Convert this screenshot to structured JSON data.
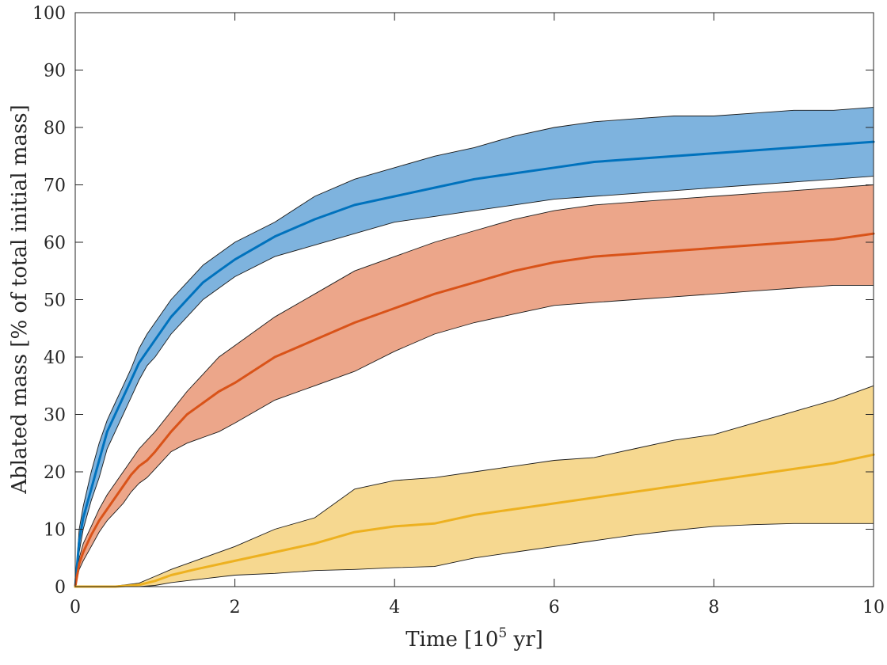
{
  "chart_data": {
    "type": "area",
    "xlabel": "Time [10",
    "xlabel_exponent": "5",
    "xlabel_unit": " yr]",
    "ylabel": "Ablated mass [% of total initial mass]",
    "xlim": [
      0,
      10
    ],
    "ylim": [
      0,
      100
    ],
    "xticks": [
      0,
      2,
      4,
      6,
      8,
      10
    ],
    "yticks": [
      0,
      10,
      20,
      30,
      40,
      50,
      60,
      70,
      80,
      90,
      100
    ],
    "grid": false,
    "legend": false,
    "series": [
      {
        "name": "blue",
        "color": "#0072BD",
        "fill": "#7EB3DE",
        "x": [
          0,
          0.05,
          0.1,
          0.2,
          0.3,
          0.4,
          0.5,
          0.6,
          0.7,
          0.8,
          0.9,
          1.0,
          1.2,
          1.4,
          1.6,
          1.8,
          2.0,
          2.5,
          3.0,
          3.5,
          4.0,
          4.5,
          5.0,
          5.5,
          6.0,
          6.5,
          7.0,
          7.5,
          8.0,
          8.5,
          9.0,
          9.5,
          10.0
        ],
        "mean": [
          0,
          8,
          12,
          17,
          22,
          27,
          30,
          33,
          36,
          39,
          41,
          43,
          47,
          50,
          53,
          55,
          57,
          61,
          64,
          66.5,
          68,
          69.5,
          71,
          72,
          73,
          74,
          74.5,
          75,
          75.5,
          76,
          76.5,
          77,
          77.5
        ],
        "upper": [
          0,
          10,
          14,
          20,
          25,
          29,
          32,
          35,
          38,
          41.5,
          44,
          46,
          50,
          53,
          56,
          58,
          60,
          63.5,
          68,
          71,
          73,
          75,
          76.5,
          78.5,
          80,
          81,
          81.5,
          82,
          82,
          82.5,
          83,
          83,
          83.5
        ],
        "lower": [
          0,
          6,
          10,
          15,
          19,
          24,
          27,
          30,
          33,
          36,
          38.5,
          40,
          44,
          47,
          50,
          52,
          54,
          57.5,
          59.5,
          61.5,
          63.5,
          64.5,
          65.5,
          66.5,
          67.5,
          68,
          68.5,
          69,
          69.5,
          70,
          70.5,
          71,
          71.5
        ]
      },
      {
        "name": "orange",
        "color": "#D95319",
        "fill": "#ECA68A",
        "x": [
          0,
          0.05,
          0.1,
          0.2,
          0.3,
          0.4,
          0.5,
          0.6,
          0.7,
          0.8,
          0.9,
          1.0,
          1.2,
          1.4,
          1.6,
          1.8,
          2.0,
          2.5,
          3.0,
          3.5,
          4.0,
          4.5,
          5.0,
          5.5,
          6.0,
          6.5,
          7.0,
          7.5,
          8.0,
          8.5,
          9.0,
          9.5,
          10.0
        ],
        "mean": [
          0,
          4,
          6,
          9,
          11.5,
          13.5,
          15.5,
          17.5,
          19.5,
          21,
          22,
          23.5,
          27,
          30,
          32,
          34,
          35.5,
          40,
          43,
          46,
          48.5,
          51,
          53,
          55,
          56.5,
          57.5,
          58,
          58.5,
          59,
          59.5,
          60,
          60.5,
          61.5
        ],
        "upper": [
          0,
          5,
          7.5,
          10.5,
          13.5,
          16,
          18,
          20,
          22,
          24,
          25.5,
          27,
          30.5,
          34,
          37,
          40,
          42,
          47,
          51,
          55,
          57.5,
          60,
          62,
          64,
          65.5,
          66.5,
          67,
          67.5,
          68,
          68.5,
          69,
          69.5,
          70
        ],
        "lower": [
          0,
          3,
          4.5,
          7,
          9.5,
          11.5,
          13,
          14.5,
          16.5,
          18,
          19,
          20.5,
          23.5,
          25,
          26,
          27,
          28.5,
          32.5,
          35,
          37.5,
          41,
          44,
          46,
          47.5,
          49,
          49.5,
          50,
          50.5,
          51,
          51.5,
          52,
          52.5,
          52.5
        ]
      },
      {
        "name": "yellow",
        "color": "#EDB120",
        "fill": "#F6D890",
        "x": [
          0,
          0.5,
          0.8,
          1.0,
          1.2,
          1.5,
          2.0,
          2.5,
          3.0,
          3.5,
          4.0,
          4.5,
          5.0,
          5.5,
          6.0,
          6.5,
          7.0,
          7.5,
          8.0,
          8.5,
          9.0,
          9.5,
          10.0
        ],
        "mean": [
          0,
          0,
          0.3,
          1,
          2,
          3,
          4.5,
          6,
          7.5,
          9.5,
          10.5,
          11,
          12.5,
          13.5,
          14.5,
          15.5,
          16.5,
          17.5,
          18.5,
          19.5,
          20.5,
          21.5,
          23
        ],
        "upper": [
          0,
          0.1,
          0.6,
          1.8,
          3,
          4.5,
          7,
          10,
          12,
          17,
          18.5,
          19,
          20,
          21,
          22,
          22.5,
          24,
          25.5,
          26.5,
          28.5,
          30.5,
          32.5,
          35
        ],
        "lower": [
          0,
          0,
          0,
          0.2,
          0.7,
          1.2,
          2,
          2.3,
          2.8,
          3,
          3.3,
          3.5,
          5,
          6,
          7,
          8,
          9,
          9.8,
          10.5,
          10.8,
          11,
          11,
          11
        ]
      }
    ]
  }
}
